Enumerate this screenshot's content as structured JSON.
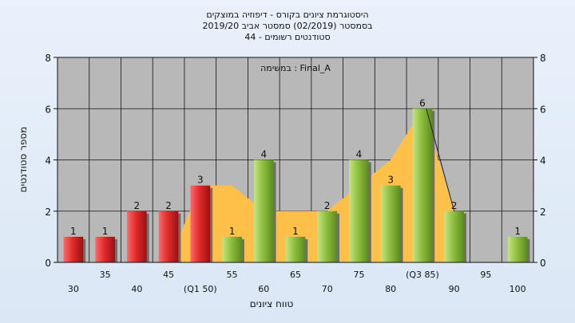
{
  "chart_data": {
    "type": "bar",
    "title_lines": [
      "היסטוגרמת ציונים בקורס - דיפוזיה במוצקים",
      "בסמסטר  (02/2019)  סמסטר אביב 2019/20",
      "סטודנטים רשומים - 44"
    ],
    "xlabel": "טווח ציונים",
    "ylabel": "מספר סטודנטים",
    "annotation": "במשימה : Final_A",
    "ylim": [
      0,
      8
    ],
    "yticks": [
      0,
      2,
      4,
      6,
      8
    ],
    "grid": true,
    "categories": [
      "30",
      "35",
      "40",
      "45",
      "(Q1 50)",
      "55",
      "60",
      "65",
      "70",
      "75",
      "80",
      "(Q3 85)",
      "90",
      "95",
      "100"
    ],
    "values": [
      1,
      1,
      2,
      2,
      3,
      1,
      4,
      1,
      2,
      4,
      3,
      6,
      2,
      0,
      1
    ],
    "area_values": [
      0,
      0,
      0,
      0,
      3,
      3,
      2,
      2,
      2,
      3,
      4,
      6,
      2,
      null,
      null
    ],
    "colors": {
      "low_bar": "#e02b2b",
      "high_bar": "#8fbf3f",
      "area": "#ffc04a",
      "plot_bg": "#b8b8b8"
    }
  }
}
